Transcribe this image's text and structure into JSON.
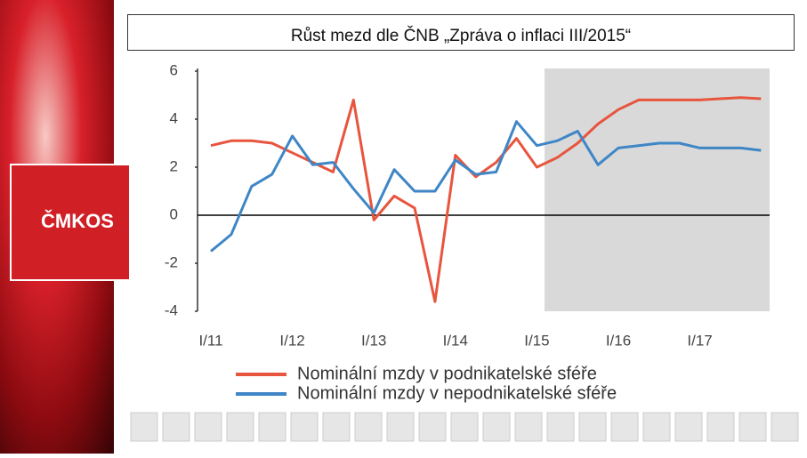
{
  "logo": "ČMKOS",
  "chart_data": {
    "type": "line",
    "title": "Růst mezd dle ČNB „Zpráva o inflaci III/2015“",
    "categories": [
      "I/11",
      null,
      null,
      null,
      "I/12",
      null,
      null,
      null,
      "I/13",
      null,
      null,
      null,
      "I/14",
      null,
      null,
      null,
      "I/15",
      null,
      null,
      null,
      "I/16",
      null,
      null,
      null,
      "I/17",
      null,
      null,
      null
    ],
    "series": [
      {
        "name": "Nominální mzdy v podnikatelské sféře",
        "color": "#e8553e",
        "values": [
          2.9,
          3.1,
          3.1,
          3.0,
          2.6,
          2.2,
          1.8,
          4.8,
          -0.2,
          0.8,
          0.3,
          -3.6,
          2.5,
          1.6,
          2.2,
          3.2,
          2.0,
          2.4,
          3.0,
          3.8,
          4.4,
          4.8,
          4.8,
          4.8,
          4.8,
          4.85,
          4.9,
          4.85
        ]
      },
      {
        "name": "Nominální mzdy v nepodnikatelské sféře",
        "color": "#3f86c6",
        "values": [
          -1.5,
          -0.8,
          1.2,
          1.7,
          3.3,
          2.1,
          2.2,
          1.1,
          0.1,
          1.9,
          1.0,
          1.0,
          2.3,
          1.7,
          1.8,
          3.9,
          2.9,
          3.1,
          3.5,
          2.1,
          2.8,
          2.9,
          3.0,
          3.0,
          2.8,
          2.8,
          2.8,
          2.7
        ]
      }
    ],
    "ylim": [
      -4,
      6
    ],
    "yticks": [
      -4,
      -2,
      0,
      2,
      4,
      6
    ]
  }
}
